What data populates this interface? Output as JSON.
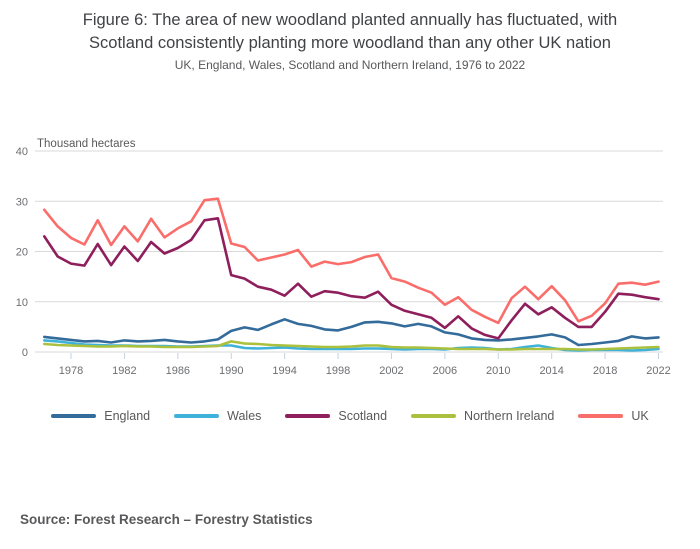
{
  "figure": {
    "title_line1": "Figure 6: The area of new woodland planted annually has fluctuated, with",
    "title_line2": "Scotland consistently planting more woodland than any other UK nation",
    "subtitle": "UK, England, Wales, Scotland and Northern Ireland, 1976 to 2022",
    "source": "Source: Forest Research – Forestry Statistics"
  },
  "colors": {
    "title_text": "#414246",
    "subtitle_text": "#58595b",
    "axis_text": "#6d6e71",
    "grid_line": "#d9d9d9",
    "tick_mark": "#c6d2e2",
    "england": "#336b9b",
    "wales": "#3fb2d9",
    "scotland": "#8e1f5c",
    "northern_ireland": "#abc13e",
    "uk": "#f96e6a"
  },
  "chart_data": {
    "type": "line",
    "title": "Figure 6: The area of new woodland planted annually has fluctuated, with Scotland consistently planting more woodland than any other UK nation",
    "subtitle": "UK, England, Wales, Scotland and Northern Ireland, 1976 to 2022",
    "unit_label": "Thousand hectares",
    "xlabel": "",
    "ylabel": "Thousand hectares",
    "grid": "horizontal",
    "legend_position": "bottom",
    "ylim": [
      0,
      40
    ],
    "yticks": [
      0,
      10,
      20,
      30,
      40
    ],
    "xticks": [
      1978,
      1982,
      1986,
      1990,
      1994,
      1998,
      2002,
      2006,
      2010,
      2014,
      2018,
      2022
    ],
    "x": [
      1976,
      1977,
      1978,
      1979,
      1980,
      1981,
      1982,
      1983,
      1984,
      1985,
      1986,
      1987,
      1988,
      1989,
      1990,
      1991,
      1992,
      1993,
      1994,
      1995,
      1996,
      1997,
      1998,
      1999,
      2000,
      2001,
      2002,
      2003,
      2004,
      2005,
      2006,
      2007,
      2008,
      2009,
      2010,
      2011,
      2012,
      2013,
      2014,
      2015,
      2016,
      2017,
      2018,
      2019,
      2020,
      2021,
      2022
    ],
    "series": [
      {
        "name": "England",
        "color": "#336b9b",
        "values": [
          3.0,
          2.7,
          2.4,
          2.1,
          2.2,
          1.9,
          2.3,
          2.1,
          2.2,
          2.4,
          2.1,
          1.9,
          2.1,
          2.5,
          4.2,
          4.9,
          4.4,
          5.5,
          6.5,
          5.6,
          5.2,
          4.5,
          4.3,
          5.0,
          5.9,
          6.0,
          5.7,
          5.1,
          5.6,
          5.1,
          3.9,
          3.5,
          2.7,
          2.4,
          2.3,
          2.5,
          2.8,
          3.1,
          3.5,
          2.9,
          1.4,
          1.6,
          1.9,
          2.2,
          3.1,
          2.7,
          2.9
        ]
      },
      {
        "name": "Wales",
        "color": "#3fb2d9",
        "values": [
          2.3,
          2.1,
          1.8,
          1.5,
          1.4,
          1.3,
          1.3,
          1.2,
          1.2,
          1.2,
          1.1,
          1.1,
          1.2,
          1.3,
          1.3,
          0.8,
          0.7,
          0.8,
          0.9,
          0.7,
          0.6,
          0.6,
          0.6,
          0.6,
          0.7,
          0.7,
          0.6,
          0.5,
          0.6,
          0.6,
          0.5,
          0.8,
          0.9,
          0.8,
          0.5,
          0.6,
          1.0,
          1.3,
          0.8,
          0.4,
          0.3,
          0.4,
          0.4,
          0.4,
          0.3,
          0.4,
          0.6
        ]
      },
      {
        "name": "Scotland",
        "color": "#8e1f5c",
        "values": [
          23.0,
          19.0,
          17.6,
          17.2,
          21.5,
          17.3,
          21.0,
          18.1,
          21.9,
          19.6,
          20.7,
          22.3,
          26.2,
          26.6,
          15.3,
          14.6,
          13.0,
          12.4,
          11.2,
          13.6,
          11.0,
          12.1,
          11.8,
          11.1,
          10.8,
          12.0,
          9.4,
          8.2,
          7.5,
          6.8,
          4.8,
          7.1,
          4.7,
          3.4,
          2.7,
          6.3,
          9.6,
          7.5,
          8.9,
          6.8,
          5.0,
          5.0,
          8.0,
          11.6,
          11.4,
          10.9,
          10.5
        ]
      },
      {
        "name": "Northern Ireland",
        "color": "#abc13e",
        "values": [
          1.6,
          1.4,
          1.3,
          1.2,
          1.1,
          1.1,
          1.2,
          1.1,
          1.1,
          1.0,
          1.0,
          1.0,
          1.1,
          1.2,
          2.1,
          1.7,
          1.6,
          1.4,
          1.3,
          1.2,
          1.1,
          1.0,
          1.0,
          1.1,
          1.3,
          1.3,
          1.0,
          0.9,
          0.9,
          0.8,
          0.7,
          0.6,
          0.6,
          0.6,
          0.5,
          0.5,
          0.6,
          0.6,
          0.6,
          0.6,
          0.5,
          0.5,
          0.6,
          0.7,
          0.8,
          0.9,
          1.0
        ]
      },
      {
        "name": "UK",
        "color": "#f96e6a",
        "values": [
          28.3,
          25.0,
          22.7,
          21.4,
          26.2,
          21.3,
          25.0,
          22.0,
          26.5,
          22.8,
          24.6,
          26.0,
          30.2,
          30.5,
          21.6,
          20.9,
          18.2,
          18.8,
          19.4,
          20.3,
          17.0,
          18.0,
          17.5,
          17.9,
          18.9,
          19.4,
          14.7,
          14.0,
          12.8,
          11.8,
          9.4,
          10.9,
          8.4,
          7.0,
          5.8,
          10.7,
          13.0,
          10.5,
          13.1,
          10.3,
          6.1,
          7.2,
          9.7,
          13.6,
          13.8,
          13.4,
          14.0
        ]
      }
    ],
    "source": "Source: Forest Research – Forestry Statistics"
  }
}
